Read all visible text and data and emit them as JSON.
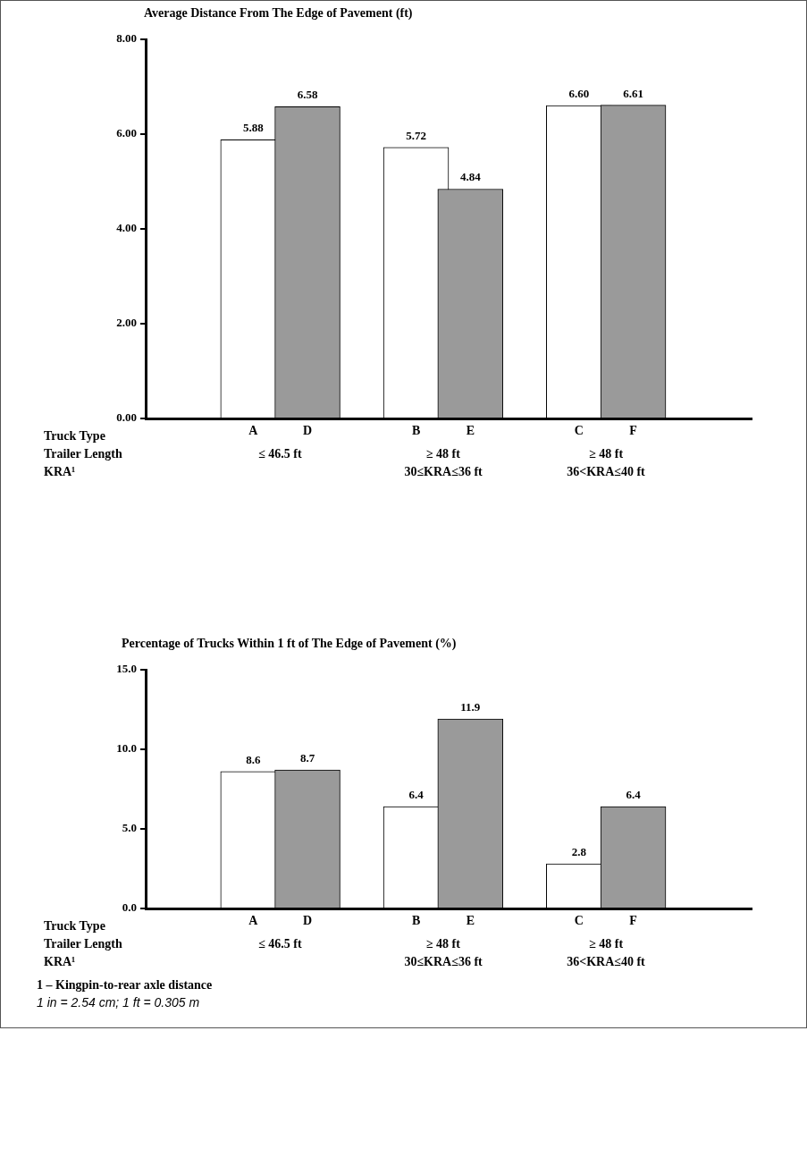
{
  "chart_data": [
    {
      "type": "bar",
      "title": "Average Distance From The Edge of Pavement (ft)",
      "categories": [
        "A",
        "D",
        "B",
        "E",
        "C",
        "F"
      ],
      "values": [
        5.88,
        6.58,
        5.72,
        4.84,
        6.6,
        6.61
      ],
      "colors": [
        "#ffffff",
        "#9a9a9a",
        "#ffffff",
        "#9a9a9a",
        "#ffffff",
        "#9a9a9a"
      ],
      "value_labels": [
        "5.88",
        "6.58",
        "5.72",
        "4.84",
        "6.60",
        "6.61"
      ],
      "ylim": [
        0,
        8
      ],
      "yticks": [
        {
          "value": 0,
          "label": "0.00"
        },
        {
          "value": 2,
          "label": "2.00"
        },
        {
          "value": 4,
          "label": "4.00"
        },
        {
          "value": 6,
          "label": "6.00"
        },
        {
          "value": 8,
          "label": "8.00"
        }
      ],
      "annotations": [
        "Truck Type",
        "Trailer Length",
        "KRA¹",
        "≤ 46.5 ft",
        "≥ 48 ft",
        "30≤KRA≤36 ft",
        "≥ 48 ft",
        "36<KRA≤40 ft"
      ]
    },
    {
      "type": "bar",
      "title": "Percentage of Trucks Within 1 ft of The Edge of Pavement (%)",
      "categories": [
        "A",
        "D",
        "B",
        "E",
        "C",
        "F"
      ],
      "values": [
        8.6,
        8.7,
        6.4,
        11.9,
        2.8,
        6.4
      ],
      "colors": [
        "#ffffff",
        "#9a9a9a",
        "#ffffff",
        "#9a9a9a",
        "#ffffff",
        "#9a9a9a"
      ],
      "value_labels": [
        "8.6",
        "8.7",
        "6.4",
        "11.9",
        "2.8",
        "6.4"
      ],
      "ylim": [
        0,
        15
      ],
      "yticks": [
        {
          "value": 0,
          "label": "0.0"
        },
        {
          "value": 5,
          "label": "5.0"
        },
        {
          "value": 10,
          "label": "10.0"
        },
        {
          "value": 15,
          "label": "15.0"
        }
      ],
      "annotations": [
        "Truck Type",
        "Trailer Length",
        "KRA¹",
        "≤ 46.5 ft",
        "≥ 48 ft",
        "30≤KRA≤36 ft",
        "≥ 48 ft",
        "36<KRA≤40 ft",
        "1 – Kingpin-to-rear axle distance",
        "1 in = 2.54 cm; 1 ft = 0.305 m"
      ]
    }
  ]
}
